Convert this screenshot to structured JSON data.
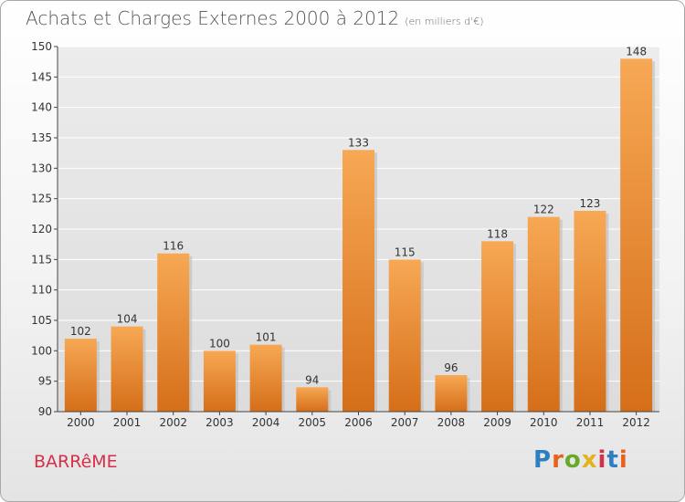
{
  "header": {
    "title": "Achats et Charges Externes 2000 à 2012",
    "subtitle": "(en milliers d'€)"
  },
  "footer": {
    "commune": "BARRêME",
    "logo_text": "Proxiti",
    "logo_colors": [
      "#2d7fc1",
      "#e6631e",
      "#69a927",
      "#e3b21c",
      "#d5304a",
      "#2d7fc1",
      "#e6631e"
    ]
  },
  "chart_data": {
    "type": "bar",
    "categories": [
      "2000",
      "2001",
      "2002",
      "2003",
      "2004",
      "2005",
      "2006",
      "2007",
      "2008",
      "2009",
      "2010",
      "2011",
      "2012"
    ],
    "values": [
      102,
      104,
      116,
      100,
      101,
      94,
      133,
      115,
      96,
      118,
      122,
      123,
      148
    ],
    "ylim": [
      90,
      150
    ],
    "yticks": [
      90,
      95,
      100,
      105,
      110,
      115,
      120,
      125,
      130,
      135,
      140,
      145,
      150
    ],
    "grid": true,
    "bar_color_top": "#f7a854",
    "bar_color_bottom": "#d56e19"
  }
}
